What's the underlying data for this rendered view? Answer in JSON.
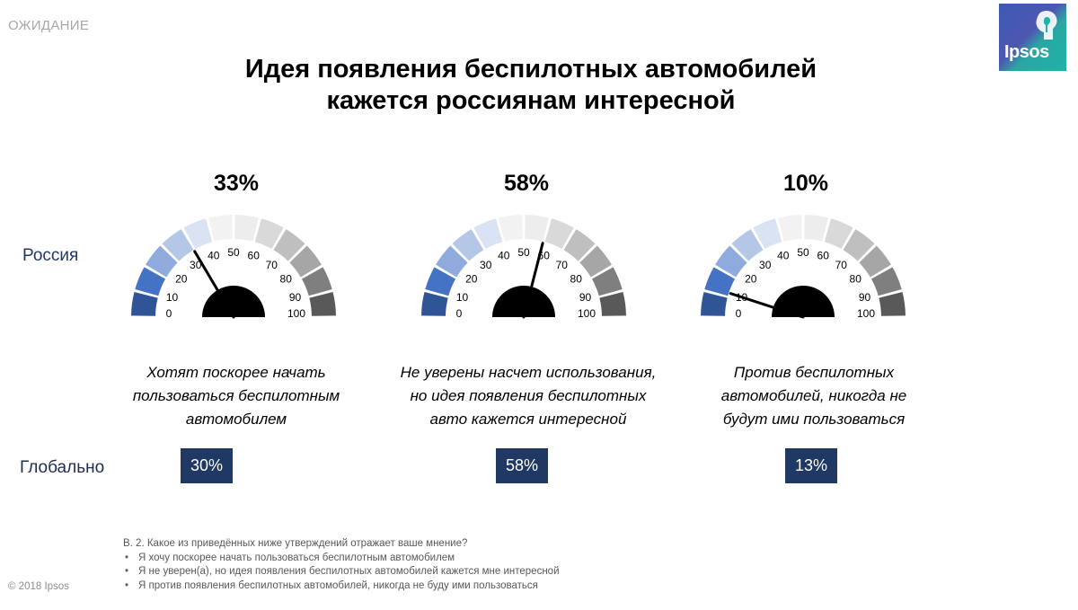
{
  "header": {
    "section": "ОЖИДАНИЕ",
    "title_line1": "Идея появления беспилотных автомобилей",
    "title_line2": "кажется россиянам интересной",
    "logo": "Ipsos"
  },
  "rows": {
    "russia": "Россия",
    "global": "Глобально"
  },
  "gauge_ticks": [
    "0",
    "10",
    "20",
    "30",
    "40",
    "50",
    "60",
    "70",
    "80",
    "90",
    "100"
  ],
  "colors": {
    "segments": [
      "#2f5597",
      "#4472c4",
      "#8faadc",
      "#b4c7e7",
      "#dae3f3",
      "#f2f2f2",
      "#ededed",
      "#d9d9d9",
      "#bfbfbf",
      "#a6a6a6",
      "#7f7f7f",
      "#595959"
    ],
    "badge": "#1f3864",
    "needle": "#000000"
  },
  "gauges": [
    {
      "russia_label": "33%",
      "russia_value": 33,
      "desc_line1": "Хотят поскорее начать",
      "desc_line2": "пользоваться беспилотным",
      "desc_line3": "автомобилем",
      "global_label": "30%"
    },
    {
      "russia_label": "58%",
      "russia_value": 58,
      "desc_line1": "Не уверены насчет использования,",
      "desc_line2": "но идея появления беспилотных",
      "desc_line3": "авто кажется интересной",
      "global_label": "58%"
    },
    {
      "russia_label": "10%",
      "russia_value": 10,
      "desc_line1": "Против беспилотных",
      "desc_line2": "автомобилей, никогда не",
      "desc_line3": "будут ими пользоваться",
      "global_label": "13%"
    }
  ],
  "footnote": {
    "question": "В. 2. Какое из приведённых ниже утверждений отражает ваше мнение?",
    "items": [
      "Я хочу поскорее начать пользоваться беспилотным автомобилем",
      "Я не уверен(а), но идея появления беспилотных автомобилей кажется мне интересной",
      "Я против появления беспилотных автомобилей, никогда не буду ими пользоваться"
    ]
  },
  "copyright": "© 2018 Ipsos"
}
